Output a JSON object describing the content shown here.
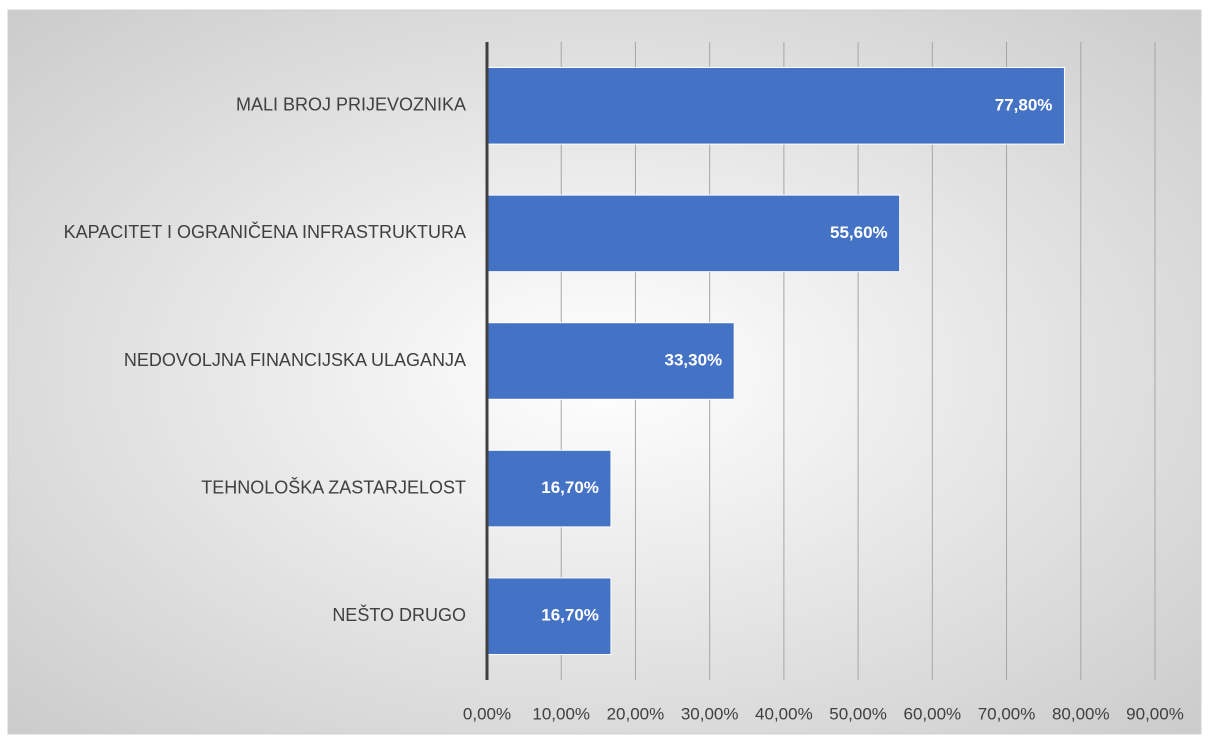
{
  "chart_data": {
    "type": "bar",
    "orientation": "horizontal",
    "categories": [
      "MALI BROJ PRIJEVOZNIKA",
      "KAPACITET I OGRANIČENA INFRASTRUKTURA",
      "NEDOVOLJNA FINANCIJSKA ULAGANJA",
      "TEHNOLOŠKA ZASTARJELOST",
      "NEŠTO DRUGO"
    ],
    "values": [
      77.8,
      55.6,
      33.3,
      16.7,
      16.7
    ],
    "value_labels": [
      "77,80%",
      "55,60%",
      "33,30%",
      "16,70%",
      "16,70%"
    ],
    "color": "#4472c4",
    "xlim": [
      0,
      90
    ],
    "xticks": [
      {
        "value": 0,
        "label": "0,00%"
      },
      {
        "value": 10,
        "label": "10,00%"
      },
      {
        "value": 20,
        "label": "20,00%"
      },
      {
        "value": 30,
        "label": "30,00%"
      },
      {
        "value": 40,
        "label": "40,00%"
      },
      {
        "value": 50,
        "label": "50,00%"
      },
      {
        "value": 60,
        "label": "60,00%"
      },
      {
        "value": 70,
        "label": "70,00%"
      },
      {
        "value": 80,
        "label": "80,00%"
      },
      {
        "value": 90,
        "label": "90,00%"
      }
    ],
    "grid": true
  }
}
